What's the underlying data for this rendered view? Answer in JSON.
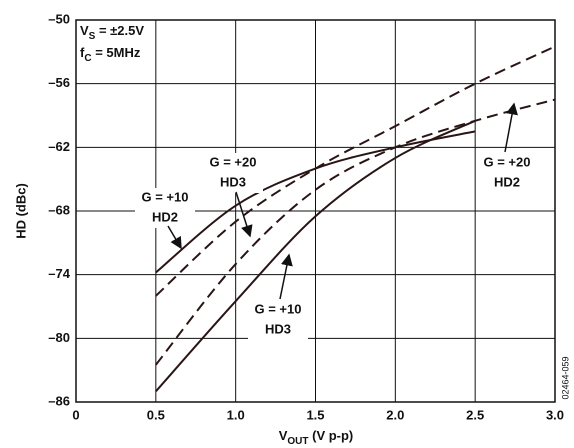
{
  "chart_data": {
    "type": "line",
    "y_label": "HD (dBc)",
    "x_label": {
      "main": "V",
      "sub": "OUT",
      "rest": " (V p-p)"
    },
    "supply_label": {
      "main": "V",
      "sub": "S",
      "rest": " = ±2.5V"
    },
    "freq_label": {
      "main": "f",
      "sub": "C",
      "rest": " = 5MHz"
    },
    "figure_code": "02464-059",
    "x": [
      0.5,
      1,
      1.5,
      2,
      2.5,
      3
    ],
    "series": [
      {
        "color": "#2a1515",
        "dash": false,
        "values": [
          -73.8,
          -67.5,
          -64,
          -62,
          -60.5,
          null
        ]
      },
      {
        "color": "#2a1515",
        "dash": true,
        "values": [
          -76,
          -69,
          -64,
          -60,
          -56,
          -52.5
        ]
      },
      {
        "color": "#2a1515",
        "dash": true,
        "values": [
          -82.5,
          -73,
          -66,
          -62,
          -59.5,
          -57.5
        ]
      },
      {
        "color": "#2a1515",
        "dash": false,
        "values": [
          -85,
          -76.5,
          -68.5,
          -63,
          -59.5,
          null
        ]
      }
    ],
    "annotations": [
      {
        "lines": [
          "G = +10",
          "HD2"
        ]
      },
      {
        "lines": [
          "G = +20",
          "HD3"
        ]
      },
      {
        "lines": [
          "G = +10",
          "HD3"
        ]
      },
      {
        "lines": [
          "G = +20",
          "HD2"
        ]
      }
    ],
    "xlim": [
      0,
      3
    ],
    "xticks": [
      0,
      0.5,
      {
        "value": 1,
        "label": "1.0"
      },
      1.5,
      {
        "value": 2,
        "label": "2.0"
      },
      2.5,
      {
        "value": 3,
        "label": "3.0"
      }
    ],
    "ylim": [
      -86,
      -50
    ],
    "yticks": [
      {
        "value": -86,
        "label": "–86"
      },
      {
        "value": -80,
        "label": "–80"
      },
      {
        "value": -74,
        "label": "–74"
      },
      {
        "value": -68,
        "label": "–68"
      },
      {
        "value": -62,
        "label": "–62"
      },
      {
        "value": -56,
        "label": "–56"
      },
      {
        "value": -50,
        "label": "–50"
      }
    ],
    "grid": true
  }
}
